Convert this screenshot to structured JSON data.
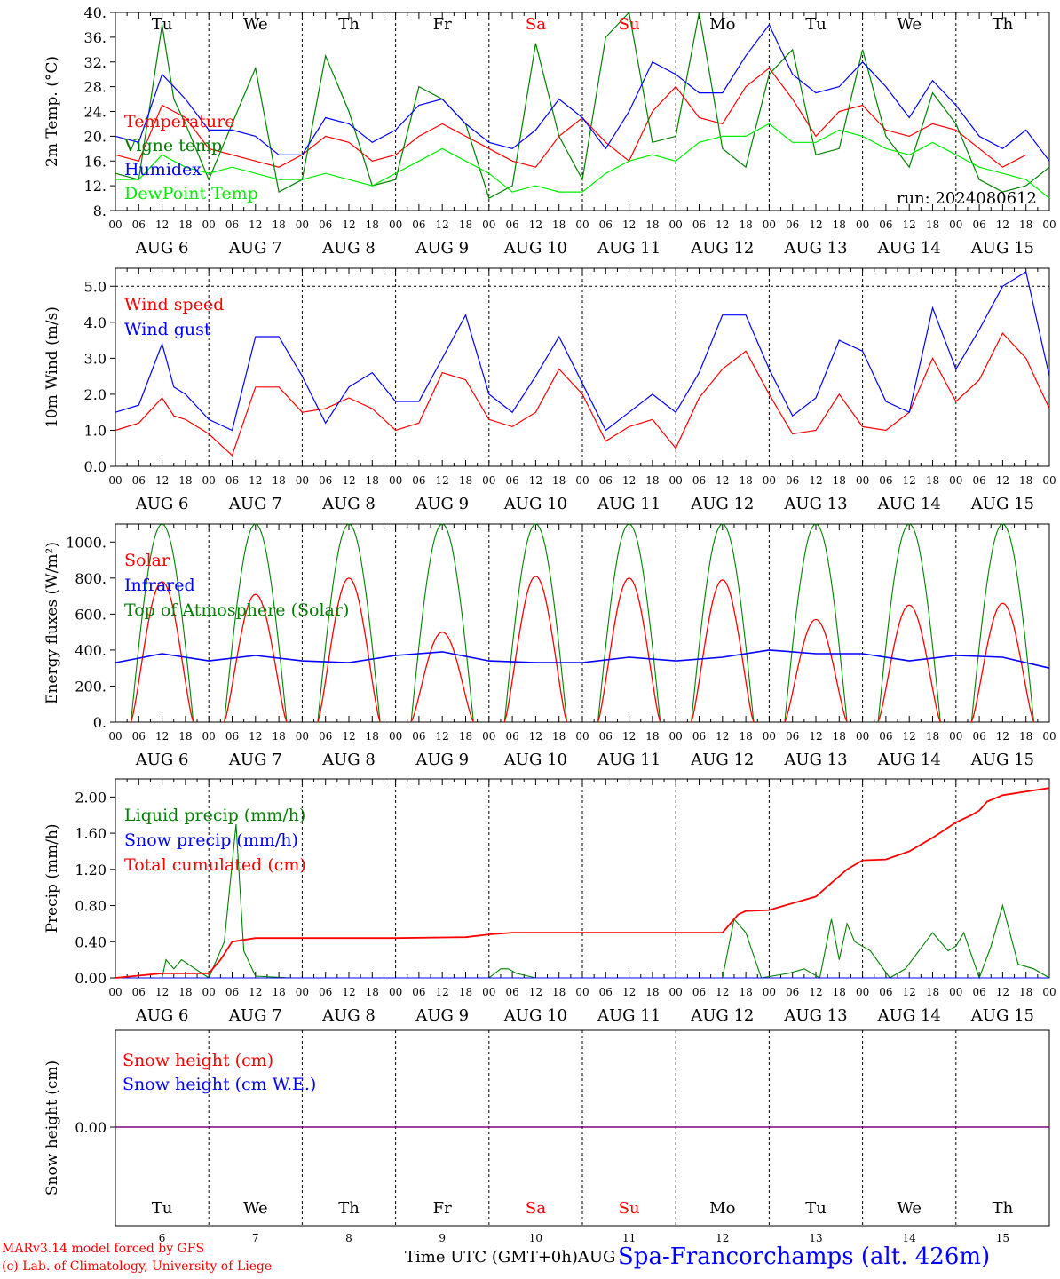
{
  "x_axis": {
    "hour_ticks": [
      "00",
      "06",
      "12",
      "18"
    ],
    "final_tick": "00",
    "date_labels": [
      "AUG  6",
      "AUG  7",
      "AUG  8",
      "AUG  9",
      "AUG 10",
      "AUG 11",
      "AUG 12",
      "AUG 13",
      "AUG 14",
      "AUG 15"
    ],
    "weekdays": [
      {
        "label": "Tu",
        "weekend": false
      },
      {
        "label": "We",
        "weekend": false
      },
      {
        "label": "Th",
        "weekend": false
      },
      {
        "label": "Fr",
        "weekend": false
      },
      {
        "label": "Sa",
        "weekend": true
      },
      {
        "label": "Su",
        "weekend": true
      },
      {
        "label": "Mo",
        "weekend": false
      },
      {
        "label": "Tu",
        "weekend": false
      },
      {
        "label": "We",
        "weekend": false
      },
      {
        "label": "Th",
        "weekend": false
      }
    ],
    "day_numbers": [
      "6",
      "7",
      "8",
      "9",
      "10",
      "11",
      "12",
      "13",
      "14",
      "15"
    ]
  },
  "footer": {
    "model_line": "MARv3.14 model forced by GFS",
    "credit_line": "(c) Lab. of Climatology, University of Liege",
    "axis_title": "Time UTC (GMT+0h)AUG",
    "station": "Spa-Francorchamps (alt. 426m)"
  },
  "colors": {
    "red": "#ff0000",
    "green": "#008000",
    "blue": "#0000ff",
    "lime": "#00ee00",
    "purple": "#800080",
    "weekend": "#ff0000"
  },
  "chart_data": [
    {
      "type": "line",
      "ylabel": "2m Temp. (°C)",
      "ylim": [
        8,
        40
      ],
      "yticks": [
        "8.",
        "12.",
        "16.",
        "20.",
        "24.",
        "28.",
        "32.",
        "36.",
        "40."
      ],
      "run_label": "run: 2024080612",
      "x_unit": "hours since Aug 6 00 UTC",
      "series": [
        {
          "name": "Temperature",
          "color": "red",
          "x": [
            0,
            6,
            12,
            15,
            18,
            24,
            30,
            36,
            42,
            48,
            54,
            60,
            66,
            72,
            78,
            84,
            90,
            96,
            102,
            108,
            114,
            120,
            126,
            132,
            138,
            144,
            150,
            156,
            162,
            168,
            174,
            180,
            186,
            192,
            198,
            204,
            210,
            216,
            222,
            228,
            234
          ],
          "y": [
            17,
            16,
            25,
            24,
            23,
            18,
            17,
            16,
            15,
            17,
            20,
            19,
            16,
            17,
            20,
            22,
            20,
            18,
            16,
            15,
            20,
            23,
            19,
            16,
            24,
            28,
            23,
            22,
            28,
            31,
            26,
            20,
            24,
            25,
            21,
            20,
            22,
            21,
            18,
            15,
            17
          ]
        },
        {
          "name": "Vigne temp",
          "color": "green",
          "x": [
            0,
            6,
            12,
            15,
            18,
            24,
            30,
            36,
            42,
            48,
            54,
            60,
            66,
            72,
            78,
            84,
            90,
            96,
            102,
            108,
            114,
            120,
            126,
            132,
            138,
            144,
            150,
            156,
            162,
            168,
            174,
            180,
            186,
            192,
            198,
            204,
            210,
            216,
            222,
            228,
            234,
            240
          ],
          "y": [
            14,
            13,
            38,
            26,
            22,
            13,
            22,
            31,
            11,
            13,
            33,
            24,
            12,
            13,
            28,
            26,
            22,
            10,
            12,
            35,
            20,
            13,
            36,
            40,
            19,
            20,
            40,
            18,
            15,
            30,
            34,
            17,
            18,
            34,
            20,
            15,
            27,
            22,
            13,
            11,
            12,
            15
          ]
        },
        {
          "name": "Humidex",
          "color": "blue",
          "x": [
            0,
            6,
            12,
            15,
            18,
            24,
            30,
            36,
            42,
            48,
            54,
            60,
            66,
            72,
            78,
            84,
            90,
            96,
            102,
            108,
            114,
            120,
            126,
            132,
            138,
            144,
            150,
            156,
            162,
            168,
            174,
            180,
            186,
            192,
            198,
            204,
            210,
            216,
            222,
            228,
            234,
            240
          ],
          "y": [
            20,
            19,
            30,
            28,
            26,
            21,
            21,
            20,
            17,
            17,
            23,
            22,
            19,
            21,
            25,
            26,
            22,
            19,
            18,
            21,
            26,
            23,
            18,
            24,
            32,
            30,
            27,
            27,
            33,
            38,
            30,
            27,
            28,
            32,
            28,
            23,
            29,
            25,
            20,
            18,
            21,
            16
          ]
        },
        {
          "name": "DewPoint Temp",
          "color": "lime",
          "x": [
            0,
            6,
            12,
            15,
            18,
            24,
            30,
            36,
            42,
            48,
            54,
            60,
            66,
            72,
            78,
            84,
            90,
            96,
            102,
            108,
            114,
            120,
            126,
            132,
            138,
            144,
            150,
            156,
            162,
            168,
            174,
            180,
            186,
            192,
            198,
            204,
            210,
            216,
            222,
            228,
            234,
            240
          ],
          "y": [
            13,
            13,
            17,
            16,
            15,
            14,
            15,
            14,
            13,
            13,
            14,
            13,
            12,
            14,
            16,
            18,
            16,
            14,
            11,
            12,
            11,
            11,
            14,
            16,
            17,
            16,
            19,
            20,
            20,
            22,
            19,
            19,
            21,
            20,
            18,
            17,
            19,
            17,
            15,
            14,
            13,
            10
          ]
        }
      ]
    },
    {
      "type": "line",
      "ylabel": "10m Wind (m/s)",
      "ylim": [
        0,
        5.5
      ],
      "yticks": [
        "0.0",
        "1.0",
        "2.0",
        "3.0",
        "4.0",
        "5.0"
      ],
      "series": [
        {
          "name": "Wind speed",
          "color": "red",
          "x": [
            0,
            6,
            12,
            15,
            18,
            24,
            30,
            36,
            42,
            48,
            54,
            60,
            66,
            72,
            78,
            84,
            90,
            96,
            102,
            108,
            114,
            120,
            126,
            132,
            138,
            144,
            150,
            156,
            162,
            168,
            174,
            180,
            186,
            192,
            198,
            204,
            210,
            216,
            222,
            228,
            234,
            240
          ],
          "y": [
            1.0,
            1.2,
            1.9,
            1.4,
            1.3,
            0.9,
            0.3,
            2.2,
            2.2,
            1.5,
            1.6,
            1.9,
            1.6,
            1.0,
            1.2,
            2.6,
            2.4,
            1.3,
            1.1,
            1.5,
            2.7,
            2.0,
            0.7,
            1.1,
            1.3,
            0.5,
            1.9,
            2.7,
            3.2,
            2.0,
            0.9,
            1.0,
            2.0,
            1.1,
            1.0,
            1.5,
            3.0,
            1.8,
            2.4,
            3.7,
            3.0,
            1.6
          ]
        },
        {
          "name": "Wind gust",
          "color": "blue",
          "x": [
            0,
            6,
            12,
            15,
            18,
            24,
            30,
            36,
            42,
            48,
            54,
            60,
            66,
            72,
            78,
            84,
            90,
            96,
            102,
            108,
            114,
            120,
            126,
            132,
            138,
            144,
            150,
            156,
            162,
            168,
            174,
            180,
            186,
            192,
            198,
            204,
            210,
            216,
            222,
            228,
            234,
            240
          ],
          "y": [
            1.5,
            1.7,
            3.4,
            2.2,
            2.0,
            1.3,
            1.0,
            3.6,
            3.6,
            2.5,
            1.2,
            2.2,
            2.6,
            1.8,
            1.8,
            3.0,
            4.2,
            2.0,
            1.5,
            2.5,
            3.6,
            2.3,
            1.0,
            1.5,
            2.0,
            1.5,
            2.6,
            4.2,
            4.2,
            2.7,
            1.4,
            1.9,
            3.5,
            3.2,
            1.8,
            1.5,
            4.4,
            2.7,
            3.8,
            5.0,
            5.4,
            2.5
          ]
        }
      ]
    },
    {
      "type": "line",
      "ylabel": "Energy fluxes (W/m²)",
      "ylim": [
        0,
        1100
      ],
      "yticks": [
        "0.",
        "200.",
        "400.",
        "600.",
        "800.",
        "1000."
      ],
      "series": [
        {
          "name": "Solar",
          "color": "red",
          "daily_peaks": [
            780,
            710,
            800,
            500,
            810,
            800,
            790,
            570,
            650,
            660
          ]
        },
        {
          "name": "Infrared",
          "color": "blue",
          "x": [
            0,
            12,
            24,
            36,
            48,
            60,
            72,
            84,
            96,
            108,
            120,
            132,
            144,
            156,
            168,
            180,
            192,
            204,
            216,
            228,
            240
          ],
          "y": [
            330,
            380,
            340,
            370,
            340,
            330,
            370,
            390,
            340,
            330,
            330,
            360,
            340,
            360,
            400,
            380,
            380,
            340,
            370,
            360,
            300
          ]
        },
        {
          "name": "Top of Atmosphere (Solar)",
          "color": "green",
          "daily_peak": 1100
        }
      ]
    },
    {
      "type": "line",
      "ylabel": "Precip (mm/h)",
      "ylim": [
        0,
        2.2
      ],
      "yticks": [
        "0.00",
        "0.40",
        "0.80",
        "1.20",
        "1.60",
        "2.00"
      ],
      "series": [
        {
          "name": "Liquid precip (mm/h)",
          "color": "green",
          "x": [
            0,
            12,
            13,
            15,
            17,
            24,
            28,
            31,
            33,
            36,
            45,
            96,
            99,
            101,
            103,
            108,
            156,
            159,
            162,
            166,
            173,
            177,
            181,
            184,
            186,
            188,
            190,
            194,
            199,
            203,
            210,
            214,
            216,
            218,
            222,
            225,
            228,
            232,
            236,
            240
          ],
          "y": [
            0,
            0,
            0.2,
            0.1,
            0.2,
            0,
            0.4,
            1.7,
            0.3,
            0.02,
            0,
            0,
            0.1,
            0.1,
            0.05,
            0,
            0,
            0.65,
            0.5,
            0,
            0.05,
            0.1,
            0,
            0.65,
            0.2,
            0.6,
            0.4,
            0.3,
            0,
            0.1,
            0.5,
            0.3,
            0.35,
            0.5,
            0,
            0.35,
            0.8,
            0.15,
            0.1,
            0
          ]
        },
        {
          "name": "Snow precip (mm/h)",
          "color": "blue",
          "x": [
            0,
            240
          ],
          "y": [
            0,
            0
          ]
        },
        {
          "name": "Total cumulated (cm)",
          "color": "red",
          "x": [
            0,
            12,
            24,
            27,
            30,
            33,
            36,
            48,
            72,
            90,
            96,
            102,
            108,
            156,
            158,
            160,
            162,
            168,
            172,
            180,
            184,
            188,
            192,
            198,
            204,
            210,
            216,
            220,
            222,
            224,
            228,
            240
          ],
          "y": [
            0,
            0.05,
            0.05,
            0.2,
            0.4,
            0.42,
            0.44,
            0.44,
            0.44,
            0.45,
            0.48,
            0.5,
            0.5,
            0.5,
            0.6,
            0.7,
            0.74,
            0.75,
            0.8,
            0.9,
            1.05,
            1.2,
            1.3,
            1.31,
            1.4,
            1.55,
            1.72,
            1.8,
            1.85,
            1.95,
            2.02,
            2.1
          ]
        }
      ]
    },
    {
      "type": "line",
      "ylabel": "Snow height (cm)",
      "ytick": "0.00",
      "series": [
        {
          "name": "Snow height (cm)",
          "color": "red",
          "x": [
            0,
            240
          ],
          "y": [
            0,
            0
          ]
        },
        {
          "name": "Snow height (cm W.E.)",
          "color": "blue",
          "x": [
            0,
            240
          ],
          "y": [
            0,
            0
          ]
        }
      ]
    }
  ]
}
